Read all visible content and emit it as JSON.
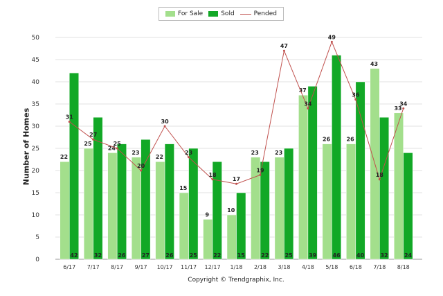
{
  "chart_data": {
    "type": "bar",
    "ylabel": "Number of Homes",
    "xlabel": "",
    "ylim": [
      0,
      50
    ],
    "yticks": [
      0,
      5,
      10,
      15,
      20,
      25,
      30,
      35,
      40,
      45,
      50
    ],
    "grid": true,
    "legend_position": "top",
    "categories": [
      "6/17",
      "7/17",
      "8/17",
      "9/17",
      "10/17",
      "11/17",
      "12/17",
      "1/18",
      "2/18",
      "3/18",
      "4/18",
      "5/18",
      "6/18",
      "7/18",
      "8/18"
    ],
    "series": [
      {
        "name": "For Sale",
        "type": "bar",
        "color": "#a3df8c",
        "values": [
          22,
          25,
          24,
          23,
          22,
          15,
          9,
          10,
          23,
          23,
          37,
          26,
          26,
          43,
          33
        ]
      },
      {
        "name": "Sold",
        "type": "bar",
        "color": "#12a826",
        "values": [
          42,
          32,
          26,
          27,
          26,
          25,
          22,
          15,
          22,
          25,
          39,
          46,
          40,
          32,
          24
        ]
      },
      {
        "name": "Pended",
        "type": "line",
        "color": "#c0504d",
        "values": [
          31,
          27,
          25,
          20,
          30,
          23,
          18,
          17,
          19,
          47,
          34,
          49,
          36,
          18,
          34
        ]
      }
    ],
    "footer": "Copyright © Trendgraphix, Inc."
  }
}
